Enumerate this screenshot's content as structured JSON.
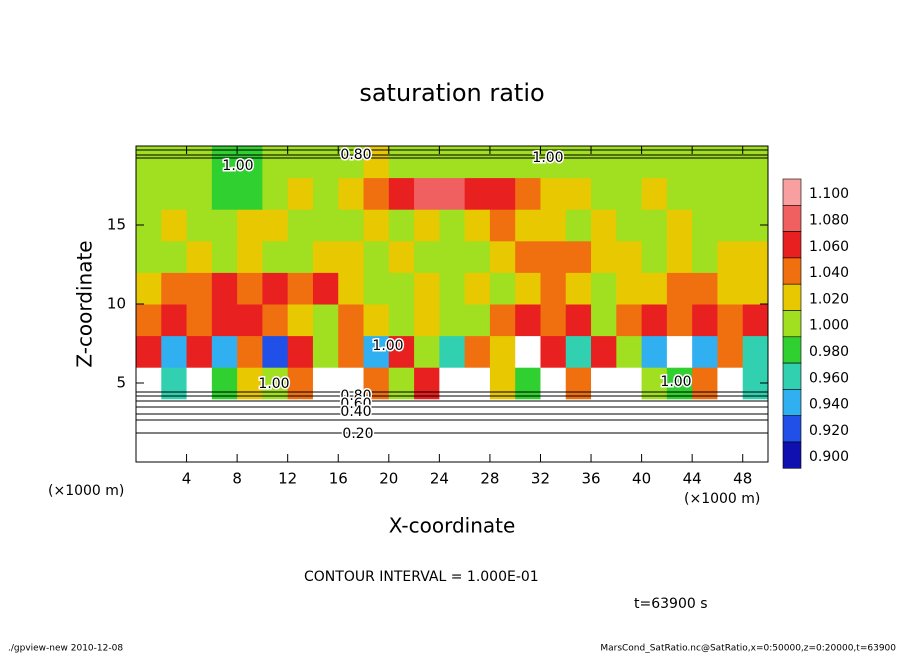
{
  "chart_data": {
    "type": "heatmap",
    "title": "saturation ratio",
    "xlabel": "X-coordinate",
    "ylabel": "Z-coordinate",
    "x_unit": "(×1000 m)",
    "y_unit": "(×1000 m)",
    "xlim": [
      0,
      50
    ],
    "ylim": [
      0,
      20
    ],
    "xticks": [
      4,
      8,
      12,
      16,
      20,
      24,
      28,
      32,
      36,
      40,
      44,
      48
    ],
    "yticks": [
      5,
      10,
      15
    ],
    "x": [
      1,
      3,
      5,
      7,
      9,
      11,
      13,
      15,
      17,
      19,
      21,
      23,
      25,
      27,
      29,
      31,
      33,
      35,
      37,
      39,
      41,
      43,
      45,
      47,
      49
    ],
    "y": [
      1,
      3,
      5,
      7,
      9,
      11,
      13,
      15,
      17,
      19
    ],
    "z": [
      [
        0.2,
        0.2,
        0.2,
        0.2,
        0.2,
        0.2,
        0.2,
        0.2,
        0.2,
        0.2,
        0.2,
        0.2,
        0.2,
        0.2,
        0.2,
        0.2,
        0.2,
        0.2,
        0.2,
        0.2,
        0.2,
        0.2,
        0.2,
        0.2,
        0.2
      ],
      [
        0.5,
        0.5,
        0.5,
        0.5,
        0.5,
        0.5,
        0.5,
        0.5,
        0.5,
        0.5,
        0.5,
        0.5,
        0.5,
        0.5,
        0.5,
        0.5,
        0.5,
        0.5,
        0.5,
        0.5,
        0.5,
        0.5,
        0.5,
        0.5,
        0.5
      ],
      [
        0.85,
        0.96,
        0.85,
        0.97,
        1.02,
        0.99,
        1.04,
        0.85,
        0.85,
        1.03,
        0.99,
        1.05,
        0.85,
        0.85,
        1.02,
        0.98,
        0.85,
        1.04,
        0.85,
        0.85,
        0.99,
        0.97,
        1.04,
        0.85,
        0.96
      ],
      [
        1.05,
        0.94,
        1.06,
        0.93,
        1.04,
        0.92,
        1.05,
        1.0,
        1.03,
        0.94,
        1.06,
        1.0,
        0.96,
        1.04,
        1.02,
        0.85,
        1.05,
        0.95,
        1.06,
        1.0,
        0.93,
        0.85,
        0.94,
        1.04,
        0.96
      ],
      [
        1.04,
        1.06,
        1.03,
        1.05,
        1.06,
        1.04,
        1.02,
        0.99,
        1.03,
        1.01,
        1.0,
        1.02,
        0.99,
        1.0,
        1.04,
        1.05,
        1.03,
        1.06,
        1.0,
        1.04,
        1.05,
        1.03,
        1.06,
        1.04,
        1.05
      ],
      [
        1.01,
        1.03,
        1.04,
        1.05,
        1.03,
        1.06,
        1.04,
        1.05,
        1.02,
        1.0,
        0.99,
        1.01,
        1.0,
        1.02,
        1.0,
        1.01,
        1.03,
        1.01,
        1.0,
        1.02,
        1.01,
        1.03,
        1.04,
        1.02,
        1.01
      ],
      [
        1.0,
        0.99,
        1.01,
        1.0,
        1.02,
        1.0,
        0.99,
        1.01,
        1.02,
        1.0,
        1.01,
        1.0,
        0.99,
        1.0,
        1.02,
        1.03,
        1.04,
        1.03,
        1.02,
        1.01,
        1.0,
        1.01,
        1.0,
        1.02,
        1.01
      ],
      [
        1.0,
        1.01,
        0.99,
        1.0,
        1.02,
        1.01,
        1.0,
        1.0,
        0.99,
        1.01,
        1.0,
        1.02,
        1.0,
        1.01,
        1.03,
        1.02,
        1.01,
        1.0,
        1.01,
        1.0,
        1.0,
        1.01,
        1.0,
        0.99,
        1.0
      ],
      [
        1.0,
        0.99,
        1.0,
        0.97,
        0.98,
        1.0,
        1.01,
        1.0,
        1.02,
        1.03,
        1.05,
        1.07,
        1.07,
        1.06,
        1.05,
        1.03,
        1.02,
        1.01,
        1.0,
        1.0,
        1.01,
        1.0,
        0.99,
        1.0,
        1.0
      ],
      [
        1.0,
        0.99,
        0.99,
        0.97,
        0.98,
        1.0,
        0.99,
        1.0,
        1.0,
        1.01,
        1.0,
        0.99,
        1.0,
        1.0,
        0.99,
        1.0,
        1.0,
        0.99,
        1.0,
        1.0,
        1.0,
        1.0,
        0.99,
        1.0,
        1.0
      ]
    ],
    "colorbar": {
      "levels": [
        {
          "value": 1.1,
          "label": "1.100"
        },
        {
          "value": 1.08,
          "label": "1.080"
        },
        {
          "value": 1.06,
          "label": "1.060"
        },
        {
          "value": 1.04,
          "label": "1.040"
        },
        {
          "value": 1.02,
          "label": "1.020"
        },
        {
          "value": 1.0,
          "label": "1.000"
        },
        {
          "value": 0.98,
          "label": "0.980"
        },
        {
          "value": 0.96,
          "label": "0.960"
        },
        {
          "value": 0.94,
          "label": "0.940"
        },
        {
          "value": 0.92,
          "label": "0.920"
        },
        {
          "value": 0.9,
          "label": "0.900"
        }
      ],
      "colors": [
        "#f8a0a0",
        "#f06060",
        "#e82020",
        "#f07010",
        "#e8c800",
        "#a0e020",
        "#30d030",
        "#30d0b0",
        "#30b0f0",
        "#2050e8",
        "#1010b0"
      ]
    },
    "contour_labels": [
      "0.80",
      "1.00",
      "1.00",
      "1.00",
      "1.00",
      "1.00",
      "0.80",
      "0.60",
      "0.40",
      "0.20"
    ],
    "contour_interval": "CONTOUR INTERVAL = 1.000E-01",
    "time_label": "t=63900 s",
    "footer_left": "./gpview-new   2010-12-08",
    "footer_right": "MarsCond_SatRatio.nc@SatRatio,x=0:50000,z=0:20000,t=63900"
  }
}
